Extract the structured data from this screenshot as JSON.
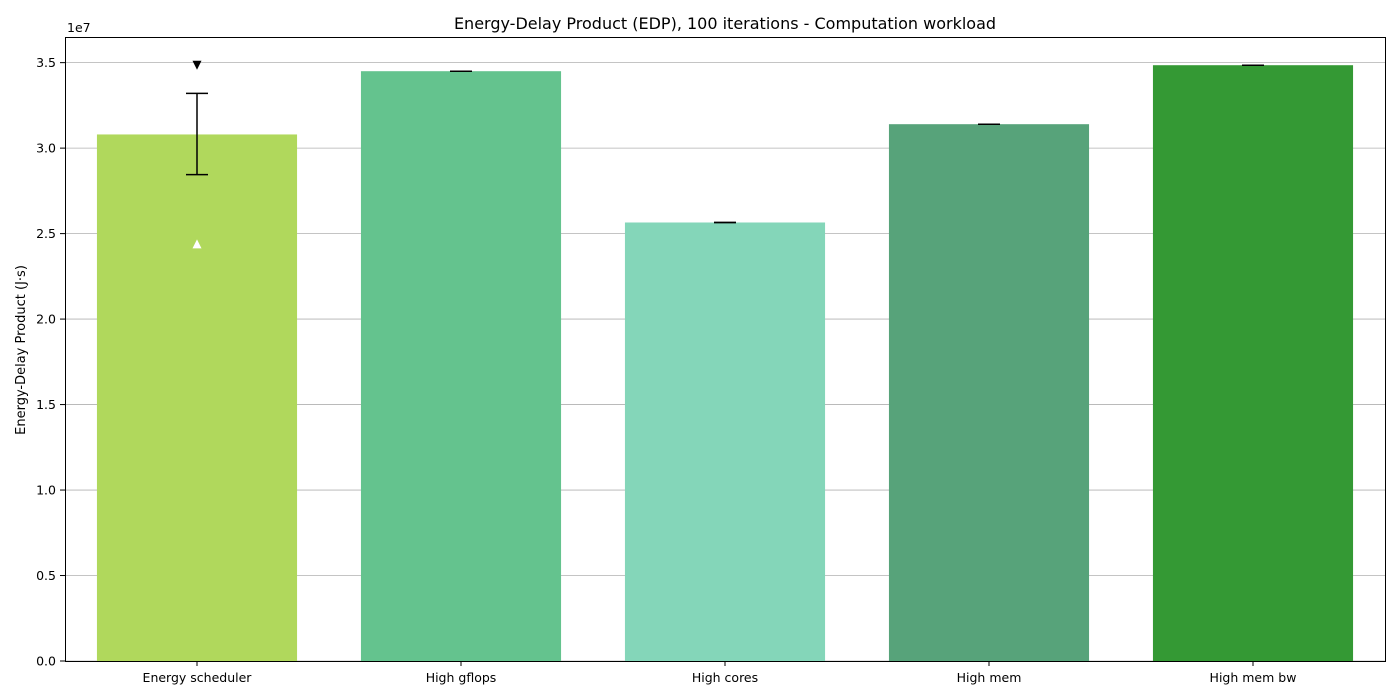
{
  "chart_data": {
    "type": "bar",
    "title": "Energy-Delay Product (EDP), 100 iterations - Computation workload",
    "ylabel": "Energy-Delay Product (J·s)",
    "xlabel": "",
    "y_multiplier_label": "1e7",
    "ylim": [
      0,
      3.65
    ],
    "yticks": [
      0.0,
      0.5,
      1.0,
      1.5,
      2.0,
      2.5,
      3.0,
      3.5
    ],
    "ytick_labels": [
      "0.0",
      "0.5",
      "1.0",
      "1.5",
      "2.0",
      "2.5",
      "3.0",
      "3.5"
    ],
    "grid": true,
    "categories": [
      "Energy scheduler",
      "High gflops",
      "High cores",
      "High mem",
      "High mem bw"
    ],
    "values": [
      3.08,
      3.45,
      2.565,
      3.14,
      3.485
    ],
    "error_low": [
      2.845,
      3.45,
      2.565,
      3.14,
      3.485
    ],
    "error_high": [
      3.32,
      3.45,
      2.565,
      3.14,
      3.485
    ],
    "markers": [
      {
        "category": "Energy scheduler",
        "shape": "triangle-down",
        "value": 3.485,
        "color": "#000000"
      },
      {
        "category": "Energy scheduler",
        "shape": "triangle-up",
        "value": 2.44,
        "color": "#ffffff"
      }
    ],
    "colors": [
      "#b0d85c",
      "#64c38e",
      "#84d6b9",
      "#57a37a",
      "#349934"
    ]
  }
}
